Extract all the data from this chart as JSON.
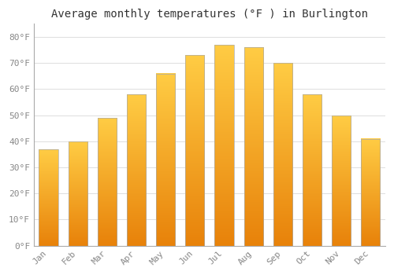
{
  "title": "Average monthly temperatures (°F ) in Burlington",
  "months": [
    "Jan",
    "Feb",
    "Mar",
    "Apr",
    "May",
    "Jun",
    "Jul",
    "Aug",
    "Sep",
    "Oct",
    "Nov",
    "Dec"
  ],
  "values": [
    37,
    40,
    49,
    58,
    66,
    73,
    77,
    76,
    70,
    58,
    50,
    41
  ],
  "ylim": [
    0,
    85
  ],
  "yticks": [
    0,
    10,
    20,
    30,
    40,
    50,
    60,
    70,
    80
  ],
  "ytick_labels": [
    "0°F",
    "10°F",
    "20°F",
    "30°F",
    "40°F",
    "50°F",
    "60°F",
    "70°F",
    "80°F"
  ],
  "background_color": "#FFFFFF",
  "plot_bg_color": "#FFFFFF",
  "grid_color": "#DDDDDD",
  "bar_color_bottom": "#E8820A",
  "bar_color_top": "#FFCC44",
  "bar_border_color": "#AAAAAA",
  "title_fontsize": 10,
  "tick_fontsize": 8,
  "bar_width": 0.65,
  "tick_color": "#888888"
}
